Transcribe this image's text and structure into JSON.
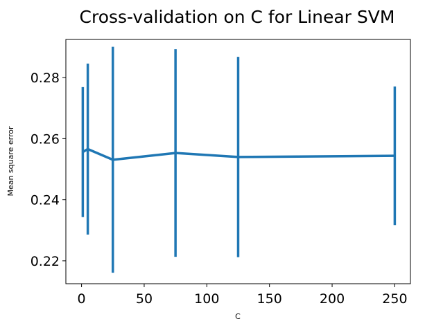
{
  "chart_data": {
    "type": "line",
    "title": "Cross-validation on C for Linear SVM",
    "xlabel": "C",
    "ylabel": "Mean square error",
    "xlim": [
      -12.5,
      262.5
    ],
    "ylim": [
      0.2125,
      0.2925
    ],
    "xticks": [
      0,
      50,
      100,
      150,
      200,
      250
    ],
    "yticks": [
      0.22,
      0.24,
      0.26,
      0.28
    ],
    "ytick_labels": [
      "0.22",
      "0.24",
      "0.26",
      "0.28"
    ],
    "grid": false,
    "color": "#1f77b4",
    "series": [
      {
        "x": [
          1,
          5,
          25,
          75,
          125,
          250
        ],
        "y": [
          0.2556,
          0.2566,
          0.2531,
          0.2553,
          0.254,
          0.2544
        ],
        "error": [
          0.0213,
          0.028,
          0.037,
          0.034,
          0.0328,
          0.0227
        ]
      }
    ]
  }
}
